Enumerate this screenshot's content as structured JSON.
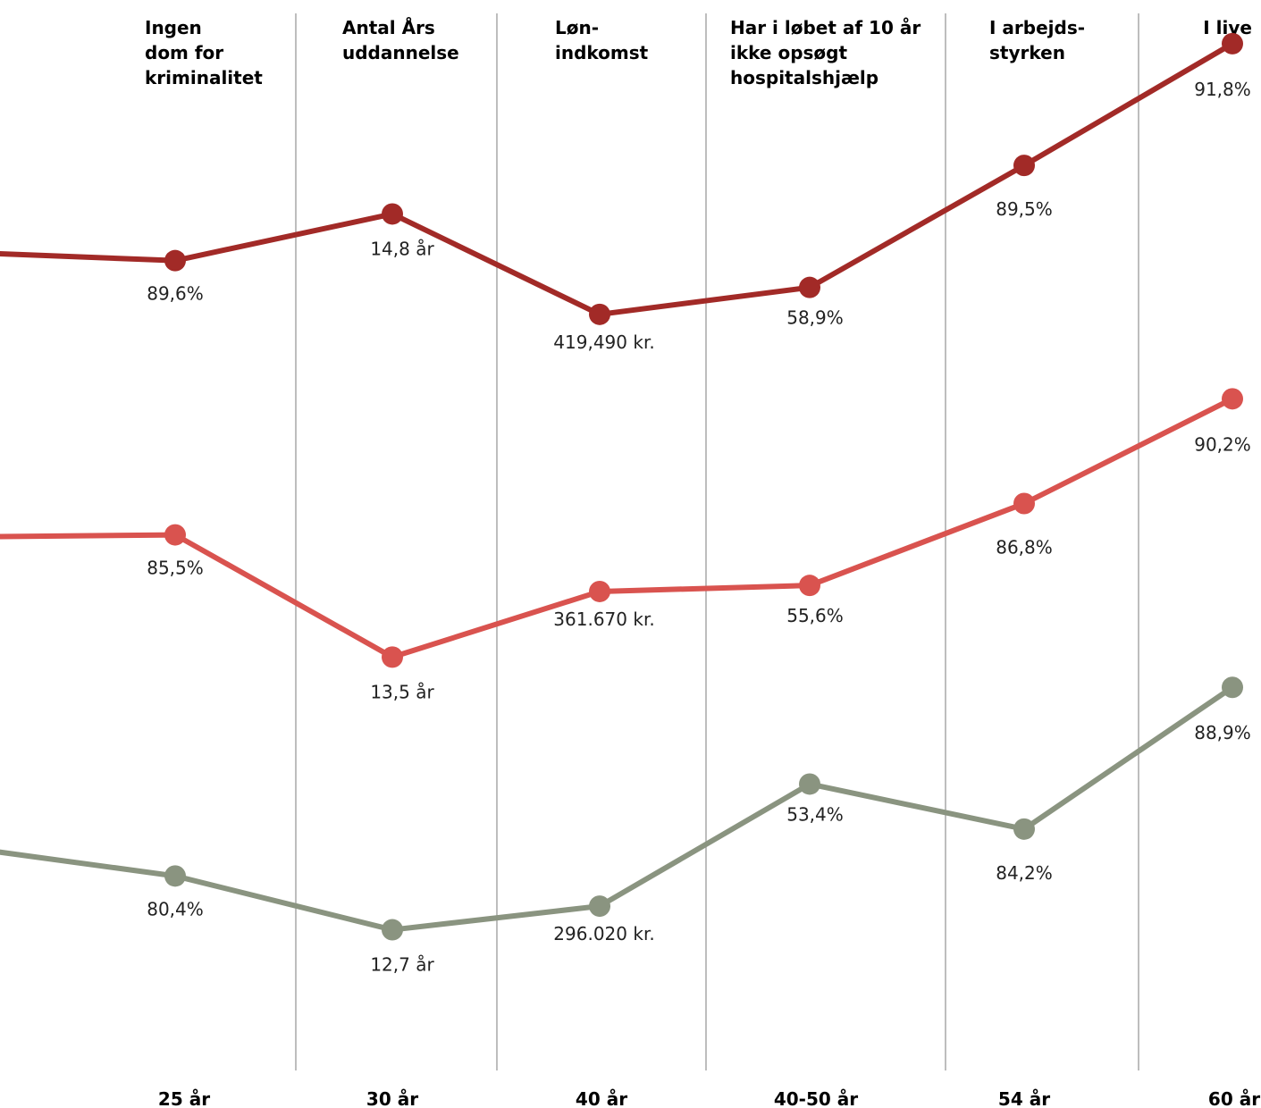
{
  "chart_data": {
    "type": "line",
    "categories": [
      "Ingen dom for kriminalitet",
      "Antal Års uddannelse",
      "Løn- indkomst",
      "Har i løbet af 10 år ikke opsøgt hospitalshjælp",
      "I arbejds- styrken",
      "I live"
    ],
    "category_header_lines": [
      [
        "Ingen",
        "dom for",
        "kriminalitet"
      ],
      [
        "Antal Års",
        "uddannelse"
      ],
      [
        "Løn-",
        "indkomst"
      ],
      [
        "Har i løbet af 10 år",
        "ikke opsøgt",
        "hospitalshjælp"
      ],
      [
        "I arbejds-",
        "styrken"
      ],
      [
        "I live"
      ]
    ],
    "x_labels": [
      "25 år",
      "30 år",
      "40 år",
      "40-50 år",
      "54 år",
      "60 år"
    ],
    "grid_vertical": true,
    "series": [
      {
        "color": "#a22a27",
        "values": [
          89.6,
          14.8,
          419490,
          58.9,
          89.5,
          91.8
        ],
        "labels": [
          "89,6%",
          "14,8 år",
          "419,490 kr.",
          "58,9%",
          "89,5%",
          "91,8%"
        ]
      },
      {
        "color": "#d9534f",
        "values": [
          85.5,
          13.5,
          361670,
          55.6,
          86.8,
          90.2
        ],
        "labels": [
          "85,5%",
          "13,5 år",
          "361.670 kr.",
          "55,6%",
          "86,8%",
          "90,2%"
        ]
      },
      {
        "color": "#8a9480",
        "values": [
          80.4,
          12.7,
          296020,
          53.4,
          84.2,
          88.9
        ],
        "labels": [
          "80,4%",
          "12,7 år",
          "296.020 kr.",
          "53,4%",
          "84,2%",
          "88,9%"
        ]
      }
    ]
  }
}
